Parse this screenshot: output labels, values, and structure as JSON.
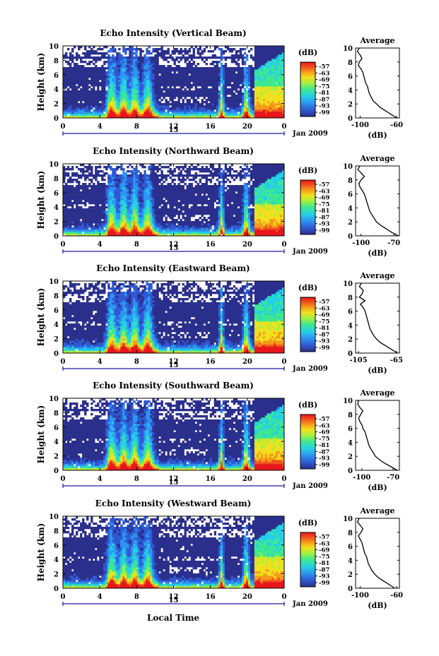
{
  "figure": {
    "x_axis_title": "Local Time",
    "date_label": "Jan 2009",
    "day_label": "15",
    "height_axis_title": "Height (km)",
    "colorbar_title": "(dB)",
    "colorbar_ticks": [
      "-57",
      "-63",
      "-69",
      "-75",
      "-81",
      "-87",
      "-93",
      "-99"
    ],
    "time_ticks": [
      "0",
      "4",
      "8",
      "12",
      "16",
      "20",
      "0"
    ],
    "height_ticks": [
      "0",
      "2",
      "4",
      "6",
      "8",
      "10"
    ],
    "avg_title": "Average",
    "avg_xlabel": "(dB)",
    "colormap": [
      "#2b2f8c",
      "#2f59d4",
      "#2c97f0",
      "#24d0e6",
      "#3ee88f",
      "#a8f03c",
      "#f2e01e",
      "#f79a1a",
      "#f0521c",
      "#e8161c"
    ]
  },
  "chart_data": [
    {
      "type": "heatmap",
      "title": "Echo Intensity (Vertical Beam)",
      "xlabel": "Local Time",
      "ylabel": "Height (km)",
      "xlim": [
        0,
        24
      ],
      "ylim": [
        0,
        10
      ],
      "clim": [
        -99,
        -57
      ],
      "avg_profile": {
        "title": "Average",
        "xlabel": "(dB)",
        "xticks": [
          "-100",
          "-60"
        ],
        "xlim": [
          -105,
          -57
        ],
        "height": [
          0,
          0.5,
          1,
          1.5,
          2,
          2.5,
          3,
          3.5,
          4,
          4.5,
          5,
          5.5,
          6,
          6.5,
          7,
          7.5,
          8,
          8.5,
          9,
          9.5,
          10
        ],
        "value": [
          -60,
          -66,
          -72,
          -78,
          -82,
          -86,
          -88,
          -90,
          -91,
          -92,
          -94,
          -95,
          -96,
          -97,
          -99,
          -102,
          -101,
          -98,
          -100,
          -103,
          -101
        ]
      }
    },
    {
      "type": "heatmap",
      "title": "Echo Intensity (Northward Beam)",
      "xlabel": "Local Time",
      "ylabel": "Height (km)",
      "xlim": [
        0,
        24
      ],
      "ylim": [
        0,
        10
      ],
      "clim": [
        -99,
        -57
      ],
      "avg_profile": {
        "title": "Average",
        "xlabel": "(dB)",
        "xticks": [
          "-100",
          "-70"
        ],
        "xlim": [
          -105,
          -65
        ],
        "height": [
          0,
          0.5,
          1,
          1.5,
          2,
          2.5,
          3,
          3.5,
          4,
          4.5,
          5,
          5.5,
          6,
          6.5,
          7,
          7.5,
          8,
          8.5,
          9,
          9.5,
          10
        ],
        "value": [
          -66,
          -72,
          -77,
          -82,
          -86,
          -88,
          -90,
          -92,
          -93,
          -94,
          -95,
          -96,
          -97,
          -99,
          -101,
          -102,
          -100,
          -97,
          -100,
          -103,
          -101
        ]
      }
    },
    {
      "type": "heatmap",
      "title": "Echo Intensity (Eastward Beam)",
      "xlabel": "Local Time",
      "ylabel": "Height (km)",
      "xlim": [
        0,
        24
      ],
      "ylim": [
        0,
        10
      ],
      "clim": [
        -99,
        -57
      ],
      "avg_profile": {
        "title": "Average",
        "xlabel": "(dB)",
        "xticks": [
          "-105",
          "-65"
        ],
        "xlim": [
          -108,
          -62
        ],
        "height": [
          0,
          0.5,
          1,
          1.5,
          2,
          2.5,
          3,
          3.5,
          4,
          4.5,
          5,
          5.5,
          6,
          6.5,
          7,
          7.5,
          8,
          8.5,
          9,
          9.5,
          10
        ],
        "value": [
          -64,
          -70,
          -76,
          -82,
          -86,
          -89,
          -91,
          -93,
          -94,
          -95,
          -96,
          -97,
          -98,
          -100,
          -103,
          -98,
          -104,
          -101,
          -100,
          -104,
          -102
        ]
      }
    },
    {
      "type": "heatmap",
      "title": "Echo Intensity (Southward Beam)",
      "xlabel": "Local Time",
      "ylabel": "Height (km)",
      "xlim": [
        0,
        24
      ],
      "ylim": [
        0,
        10
      ],
      "clim": [
        -99,
        -57
      ],
      "avg_profile": {
        "title": "Average",
        "xlabel": "(dB)",
        "xticks": [
          "-100",
          "-70"
        ],
        "xlim": [
          -106,
          -64
        ],
        "height": [
          0,
          0.5,
          1,
          1.5,
          2,
          2.5,
          3,
          3.5,
          4,
          4.5,
          5,
          5.5,
          6,
          6.5,
          7,
          7.5,
          8,
          8.5,
          9,
          9.5,
          10
        ],
        "value": [
          -66,
          -72,
          -78,
          -83,
          -87,
          -89,
          -91,
          -93,
          -94,
          -95,
          -96,
          -97,
          -99,
          -100,
          -102,
          -103,
          -101,
          -99,
          -102,
          -104,
          -103
        ]
      }
    },
    {
      "type": "heatmap",
      "title": "Echo Intensity (Westward Beam)",
      "xlabel": "Local Time",
      "ylabel": "Height (km)",
      "xlim": [
        0,
        24
      ],
      "ylim": [
        0,
        10
      ],
      "clim": [
        -99,
        -57
      ],
      "avg_profile": {
        "title": "Average",
        "xlabel": "(dB)",
        "xticks": [
          "-100",
          "-60"
        ],
        "xlim": [
          -105,
          -57
        ],
        "height": [
          0,
          0.5,
          1,
          1.5,
          2,
          2.5,
          3,
          3.5,
          4,
          4.5,
          5,
          5.5,
          6,
          6.5,
          7,
          7.5,
          8,
          8.5,
          9,
          9.5,
          10
        ],
        "value": [
          -62,
          -68,
          -74,
          -80,
          -84,
          -87,
          -89,
          -91,
          -92,
          -93,
          -95,
          -96,
          -97,
          -98,
          -100,
          -102,
          -99,
          -97,
          -100,
          -103,
          -101
        ]
      }
    }
  ]
}
